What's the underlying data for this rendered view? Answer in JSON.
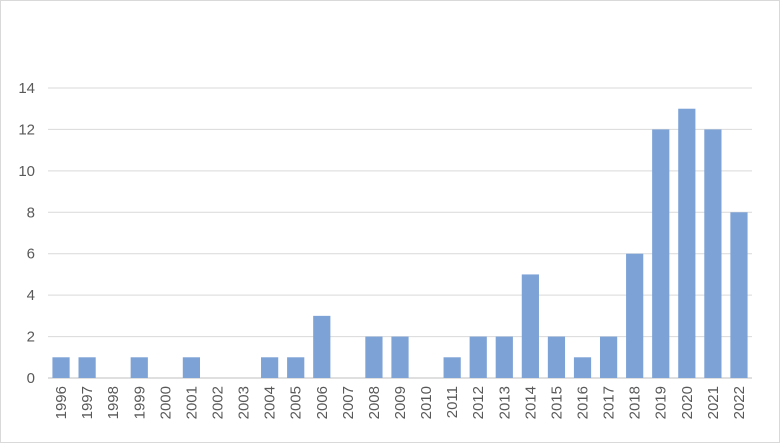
{
  "chart_data": {
    "type": "bar",
    "title": "",
    "xlabel": "",
    "ylabel": "",
    "categories": [
      "1996",
      "1997",
      "1998",
      "1999",
      "2000",
      "2001",
      "2002",
      "2003",
      "2004",
      "2005",
      "2006",
      "2007",
      "2008",
      "2009",
      "2010",
      "2011",
      "2012",
      "2013",
      "2014",
      "2015",
      "2016",
      "2017",
      "2018",
      "2019",
      "2020",
      "2021",
      "2022"
    ],
    "values": [
      1,
      1,
      0,
      1,
      0,
      1,
      0,
      0,
      1,
      1,
      3,
      0,
      2,
      2,
      0,
      1,
      2,
      2,
      5,
      2,
      1,
      2,
      6,
      12,
      13,
      12,
      8
    ],
    "ylim": [
      0,
      14
    ],
    "yticks": [
      0,
      2,
      4,
      6,
      8,
      10,
      12,
      14
    ],
    "grid": true,
    "legend": "none",
    "bar_color": "#7da2d6",
    "grid_color": "#d9d9d9",
    "axis_color": "#bfbfbf"
  }
}
